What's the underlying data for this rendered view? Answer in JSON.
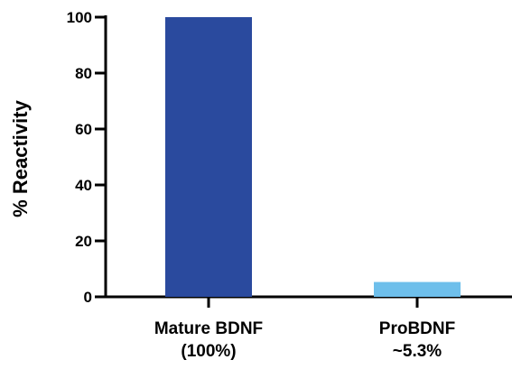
{
  "chart_data": {
    "type": "bar",
    "categories": [
      [
        "Mature BDNF",
        "(100%)"
      ],
      [
        "ProBDNF",
        "~5.3%"
      ]
    ],
    "values": [
      100,
      5.3
    ],
    "colors": [
      "#2a4a9e",
      "#6ebfeb"
    ],
    "xlabel": "",
    "ylabel": "% Reactivity",
    "ylim": [
      0,
      100
    ],
    "yticks": [
      0,
      20,
      40,
      60,
      80,
      100
    ],
    "ytick_labels": [
      "0",
      "20",
      "40",
      "60",
      "80",
      "100"
    ],
    "grid": false
  }
}
